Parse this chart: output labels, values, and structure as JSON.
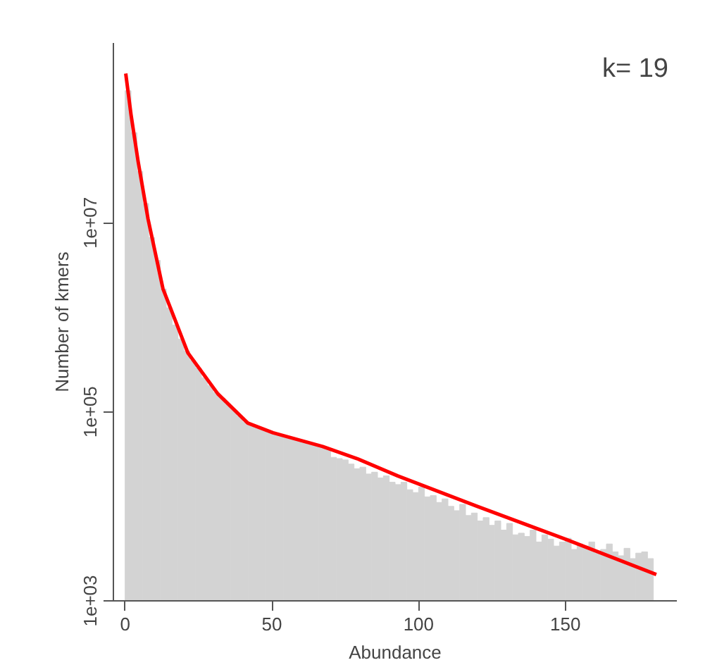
{
  "chart_data": {
    "type": "histogram",
    "xlabel": "Abundance",
    "ylabel": "Number of kmers",
    "annotations": [
      "k= 19"
    ],
    "bins": [
      0,
      2,
      4,
      6,
      8,
      10,
      12,
      14,
      16,
      18,
      20,
      22,
      24,
      26,
      28,
      30,
      32,
      34,
      36,
      38,
      40,
      42,
      44,
      46,
      48,
      50,
      52,
      54,
      56,
      58,
      60,
      62,
      64,
      66,
      68,
      70,
      72,
      74,
      76,
      78,
      80,
      82,
      84,
      86,
      88,
      90,
      92,
      94,
      96,
      98,
      100,
      102,
      104,
      106,
      108,
      110,
      112,
      114,
      116,
      118,
      120,
      122,
      124,
      126,
      128,
      130,
      132,
      134,
      136,
      138,
      140,
      142,
      144,
      146,
      148,
      150,
      152,
      154,
      156,
      158,
      160,
      162,
      164,
      166,
      168,
      170,
      172,
      174,
      176,
      178,
      180
    ],
    "values": [
      250000000,
      90000000,
      35000000,
      16000000,
      7000000,
      4000000,
      2000000,
      1260000,
      830000,
      590000,
      440000,
      350000,
      290000,
      230000,
      190000,
      160000,
      140000,
      120000,
      105000,
      90000,
      78000,
      72000,
      68000,
      65000,
      62000,
      59000,
      56000,
      54000,
      51000,
      49000,
      47000,
      45000,
      44000,
      42000,
      40000,
      33000,
      32000,
      31000,
      28000,
      25000,
      26000,
      22000,
      23000,
      20000,
      21000,
      18000,
      17000,
      18000,
      15000,
      14000,
      16000,
      12600,
      13000,
      11000,
      12000,
      10000,
      9000,
      10500,
      8000,
      8500,
      7000,
      7600,
      6300,
      7000,
      5600,
      6600,
      5000,
      5200,
      4800,
      5600,
      4200,
      5000,
      4500,
      3800,
      4200,
      4600,
      3500,
      4000,
      3800,
      4200,
      3200,
      3500,
      4000,
      3300,
      3000,
      3600,
      2800,
      3200,
      3300,
      2800
    ],
    "color": "#d3d3d3",
    "series": [
      {
        "type": "line",
        "color": "#ff0000",
        "x": [
          0.2,
          2,
          4.4,
          7.8,
          12.9,
          21.4,
          31.6,
          41.8,
          50.4,
          67.3,
          79,
          92.9,
          120,
          150,
          181
        ],
        "values": [
          380000000,
          140000000,
          45000000,
          11000000,
          2000000,
          420000,
          155000,
          76000,
          60000,
          43000,
          32000,
          21000,
          10000,
          4500,
          1900
        ]
      }
    ],
    "log": "y",
    "xlim": [
      -4,
      188
    ],
    "ylim": [
      1000,
      800000000
    ],
    "xticks": [
      0,
      50,
      100,
      150
    ],
    "yticks": [
      {
        "value": 1000,
        "label": "1e+03"
      },
      {
        "value": 100000,
        "label": "1e+05"
      },
      {
        "value": 10000000,
        "label": "1e+07"
      }
    ],
    "grid": false
  }
}
